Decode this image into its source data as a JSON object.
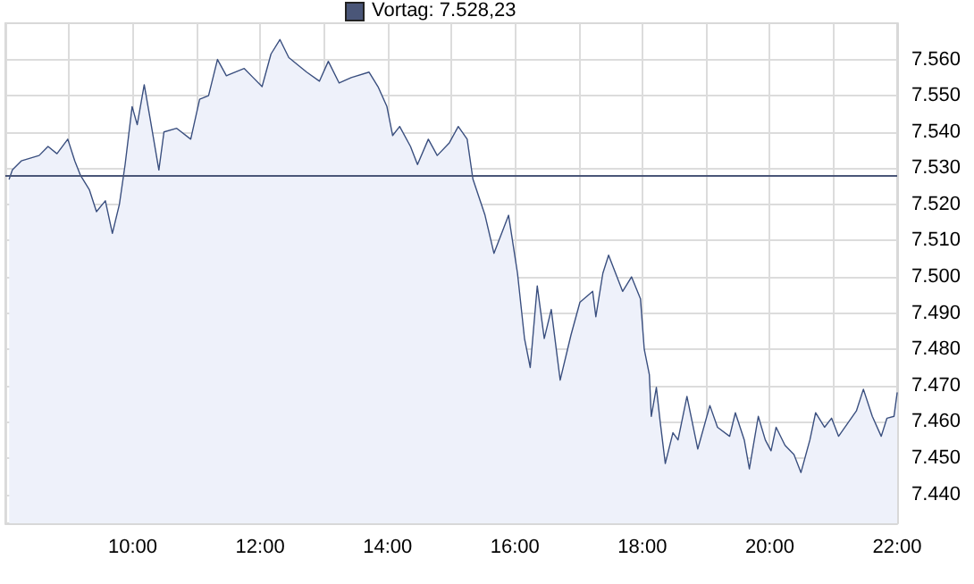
{
  "chart_data": {
    "type": "area",
    "x": [
      8.06,
      8.11,
      8.25,
      8.53,
      8.67,
      8.81,
      8.98,
      9.09,
      9.18,
      9.32,
      9.43,
      9.57,
      9.68,
      9.79,
      9.88,
      9.99,
      10.07,
      10.18,
      10.27,
      10.41,
      10.49,
      10.69,
      10.91,
      11.05,
      11.19,
      11.33,
      11.47,
      11.75,
      11.89,
      12.03,
      12.17,
      12.31,
      12.45,
      12.73,
      12.93,
      13.07,
      13.24,
      13.43,
      13.71,
      13.85,
      13.99,
      14.08,
      14.19,
      14.36,
      14.47,
      14.64,
      14.78,
      14.97,
      15.11,
      15.25,
      15.34,
      15.53,
      15.67,
      15.9,
      16.04,
      16.15,
      16.24,
      16.35,
      16.46,
      16.57,
      16.71,
      16.88,
      17.02,
      17.22,
      17.27,
      17.38,
      17.47,
      17.69,
      17.83,
      17.97,
      18.03,
      18.11,
      18.14,
      18.22,
      18.28,
      18.36,
      18.48,
      18.56,
      18.7,
      18.87,
      19.06,
      19.18,
      19.37,
      19.46,
      19.6,
      19.68,
      19.82,
      19.93,
      20.02,
      20.1,
      20.24,
      20.38,
      20.49,
      20.63,
      20.72,
      20.86,
      20.97,
      21.08,
      21.22,
      21.36,
      21.47,
      21.61,
      21.75,
      21.84,
      21.95,
      22.0
    ],
    "series": [
      {
        "color": "#3a4f7f",
        "values": [
          7527,
          7529.5,
          7532,
          7533.5,
          7536,
          7534,
          7538,
          7532,
          7528,
          7524,
          7518,
          7521,
          7512,
          7520,
          7531,
          7547,
          7542,
          7553,
          7544,
          7529.5,
          7540,
          7541,
          7538,
          7549,
          7550,
          7560,
          7555.5,
          7557.5,
          7555,
          7552.5,
          7561.5,
          7565.5,
          7560.5,
          7556.5,
          7554,
          7559.5,
          7553.5,
          7555,
          7556.5,
          7552.5,
          7547,
          7539,
          7541.5,
          7536,
          7531,
          7538,
          7533.5,
          7537,
          7541.5,
          7538,
          7527,
          7517,
          7506.5,
          7517,
          7501,
          7483,
          7475,
          7497.5,
          7483,
          7491,
          7471.5,
          7484,
          7493,
          7496,
          7489,
          7501,
          7506,
          7496,
          7500,
          7494,
          7480,
          7473,
          7461.5,
          7469.5,
          7460,
          7448.5,
          7457,
          7455,
          7467,
          7452.5,
          7464.5,
          7458.5,
          7456,
          7462.5,
          7455,
          7447,
          7461.5,
          7455,
          7452,
          7458.5,
          7453.5,
          7451,
          7446,
          7455,
          7462.5,
          7458.5,
          7461,
          7456,
          7459.5,
          7463,
          7469,
          7461.5,
          7456,
          7461,
          7461.5,
          7468
        ]
      }
    ],
    "xlim": [
      8,
      22
    ],
    "xticks": [
      {
        "value": 8,
        "label": null
      },
      {
        "value": 9,
        "label": null
      },
      {
        "value": 10,
        "label": "10:00"
      },
      {
        "value": 11,
        "label": null
      },
      {
        "value": 12,
        "label": "12:00"
      },
      {
        "value": 13,
        "label": null
      },
      {
        "value": 14,
        "label": "14:00"
      },
      {
        "value": 15,
        "label": null
      },
      {
        "value": 16,
        "label": "16:00"
      },
      {
        "value": 17,
        "label": null
      },
      {
        "value": 18,
        "label": "18:00"
      },
      {
        "value": 19,
        "label": null
      },
      {
        "value": 20,
        "label": "20:00"
      },
      {
        "value": 21,
        "label": null
      },
      {
        "value": 22,
        "label": "22:00"
      }
    ],
    "ylim": [
      7432,
      7570
    ],
    "yticks": [
      {
        "value": 7440,
        "label": "7.440"
      },
      {
        "value": 7450,
        "label": "7.450"
      },
      {
        "value": 7460,
        "label": "7.460"
      },
      {
        "value": 7470,
        "label": "7.470"
      },
      {
        "value": 7480,
        "label": "7.480"
      },
      {
        "value": 7490,
        "label": "7.490"
      },
      {
        "value": 7500,
        "label": "7.500"
      },
      {
        "value": 7510,
        "label": "7.510"
      },
      {
        "value": 7520,
        "label": "7.520"
      },
      {
        "value": 7530,
        "label": "7.530"
      },
      {
        "value": 7540,
        "label": "7.540"
      },
      {
        "value": 7550,
        "label": "7.550"
      },
      {
        "value": 7560,
        "label": "7.560"
      }
    ],
    "ref_lines": [
      {
        "axis": "y",
        "value": 7528.23,
        "label": "Vortag: 7.528,23",
        "color": "#4a5678"
      }
    ],
    "grid": true,
    "marker": "none",
    "line_style": "solid"
  }
}
